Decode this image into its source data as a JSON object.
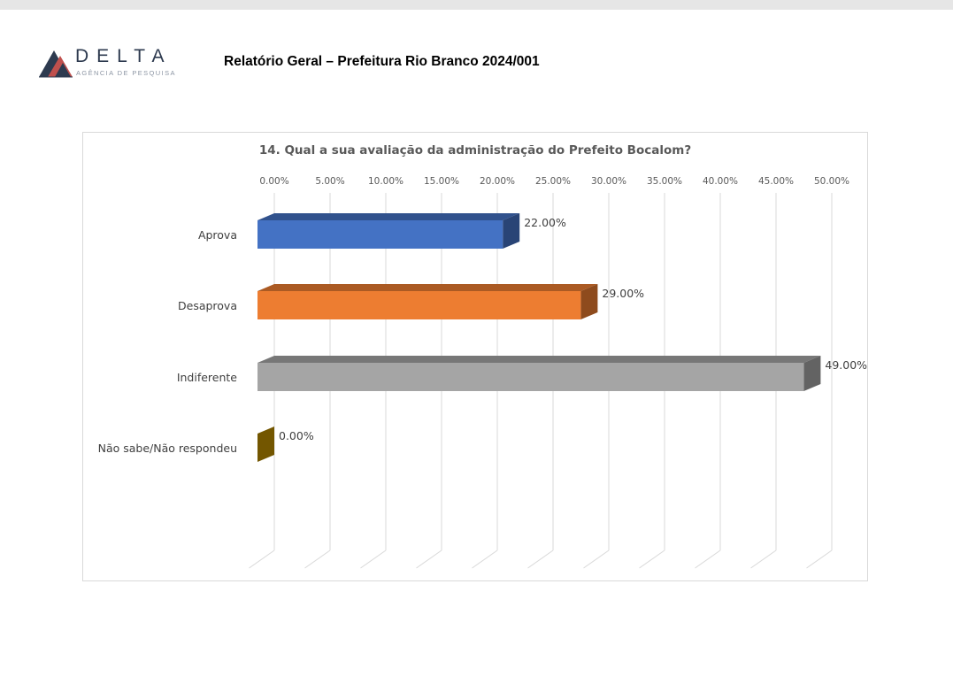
{
  "header": {
    "logo_word": "DELTA",
    "logo_sub": "AGÊNCIA DE PESQUISA",
    "report_title": "Relatório Geral – Prefeitura Rio Branco 2024/001"
  },
  "colors": {
    "logo_dark": "#2d3a4f",
    "logo_red": "#c0504d",
    "series": [
      "#4472c4",
      "#ed7d31",
      "#a5a5a5",
      "#bf9000"
    ]
  },
  "chart_data": {
    "type": "bar",
    "orientation": "horizontal",
    "style": "3d",
    "title": "14. Qual a sua avaliação da administração do Prefeito Bocalom?",
    "categories": [
      "Aprova",
      "Desaprova",
      "Indiferente",
      "Não sabe/Não respondeu"
    ],
    "values": [
      22.0,
      29.0,
      49.0,
      0.0
    ],
    "value_labels": [
      "22.00%",
      "29.00%",
      "49.00%",
      "0.00%"
    ],
    "xlim": [
      0,
      50
    ],
    "x_ticks": [
      "0.00%",
      "5.00%",
      "10.00%",
      "15.00%",
      "20.00%",
      "25.00%",
      "30.00%",
      "35.00%",
      "40.00%",
      "45.00%",
      "50.00%"
    ],
    "axis_position": "top",
    "grid": true,
    "legend": "none"
  }
}
